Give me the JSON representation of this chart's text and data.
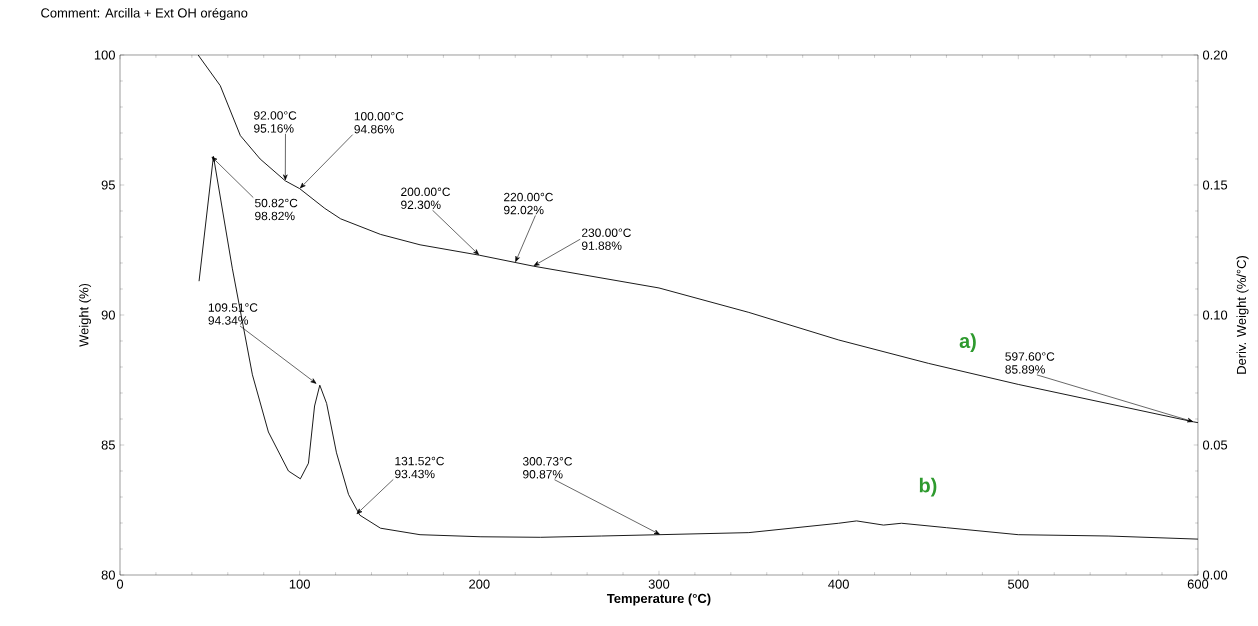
{
  "chart_data": {
    "type": "line",
    "title": "Comment: Arcilla + Ext OH orégano",
    "xlabel": "Temperature (°C)",
    "ylabel": "Weight (%)",
    "y2label": "Deriv. Weight (%/°C)",
    "xlim": [
      0,
      600
    ],
    "xticks": [
      0,
      100,
      200,
      300,
      400,
      500,
      600
    ],
    "ylim": [
      80,
      100
    ],
    "yticks": [
      80,
      85,
      90,
      95,
      100
    ],
    "y2lim": [
      0,
      0.2
    ],
    "y2ticks": [
      {
        "value": 0,
        "label": "0.00"
      },
      {
        "value": 0.05,
        "label": "0.05"
      },
      {
        "value": 0.1,
        "label": "0.10"
      },
      {
        "value": 0.15,
        "label": "0.15"
      },
      {
        "value": 0.2,
        "label": "0.20"
      }
    ],
    "series": [
      {
        "name": "a)",
        "color": "#000000",
        "x": [
          43.5,
          55.8,
          67,
          78,
          92,
          100,
          114,
          122.8,
          145,
          167,
          200,
          220,
          230,
          300,
          350,
          400,
          450,
          500,
          597.6,
          600
        ],
        "values": [
          100,
          98.82,
          96.9,
          96.0,
          95.16,
          94.86,
          94.1,
          93.7,
          93.1,
          92.7,
          92.3,
          92.02,
          91.88,
          91.04,
          90.1,
          89.04,
          88.14,
          87.33,
          85.89,
          85.86
        ]
      },
      {
        "name": "b)",
        "color": "#000000",
        "axis": "y2",
        "x": [
          44,
          52,
          62.5,
          73.7,
          82.6,
          93.75,
          100.4,
          104.9,
          108.3,
          111.2,
          115,
          120.5,
          127.2,
          133.5,
          145,
          167,
          200.9,
          234,
          268,
          300,
          350,
          400,
          410,
          425,
          435,
          460,
          500,
          550,
          600
        ],
        "values": [
          0.113,
          0.161,
          0.118,
          0.077,
          0.055,
          0.04,
          0.037,
          0.043,
          0.065,
          0.073,
          0.066,
          0.047,
          0.031,
          0.023,
          0.018,
          0.0155,
          0.0147,
          0.0145,
          0.015,
          0.0155,
          0.0163,
          0.0199,
          0.0208,
          0.0192,
          0.0199,
          0.0182,
          0.0155,
          0.015,
          0.0138
        ]
      }
    ],
    "annotations": [
      {
        "text": "92.00°C 95.16%",
        "x": 92,
        "y": 95.16
      },
      {
        "text": "100.00°C 94.86%",
        "x": 100,
        "y": 94.86
      },
      {
        "text": "50.82°C 98.82%",
        "x": 50.82,
        "y": 96.1
      },
      {
        "text": "200.00°C 92.30%",
        "x": 200,
        "y": 92.3
      },
      {
        "text": "220.00°C 92.02%",
        "x": 220,
        "y": 92.02
      },
      {
        "text": "230.00°C 91.88%",
        "x": 230,
        "y": 91.88
      },
      {
        "text": "109.51°C 94.34%",
        "x": 109.51,
        "y": 87.35
      },
      {
        "text": "131.52°C 93.43%",
        "x": 131.52,
        "y": 82.33
      },
      {
        "text": "300.73°C 90.87%",
        "x": 300.73,
        "y": 81.55
      },
      {
        "text": "597.60°C 85.89%",
        "x": 597.6,
        "y": 85.89
      }
    ]
  }
}
